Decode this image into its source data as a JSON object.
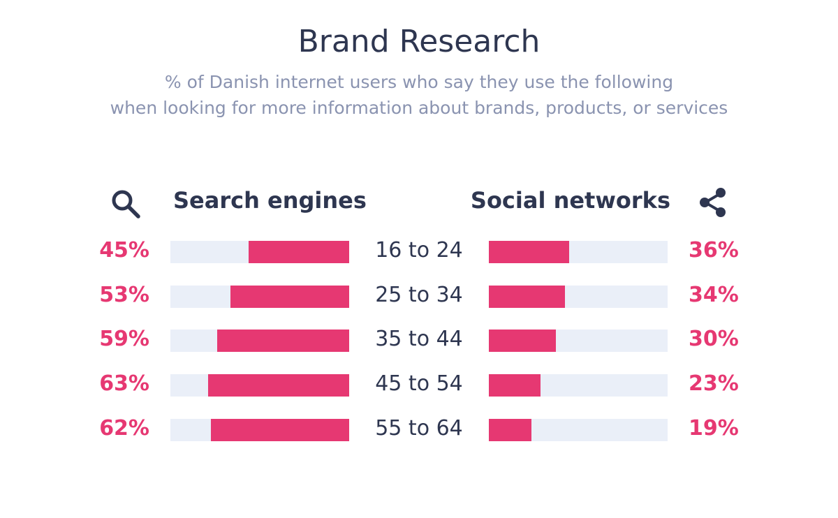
{
  "title": "Brand Research",
  "subtitle_line1": "% of Danish internet users who say they use the following",
  "subtitle_line2": "when looking for more information about brands, products, or services",
  "colors": {
    "accent": "#e63872",
    "track": "#eaeff8",
    "text_dark": "#2e3650",
    "text_muted": "#8a93b0"
  },
  "icons": {
    "left": "search-icon",
    "right": "share-icon"
  },
  "chart_data": {
    "type": "bar",
    "categories": [
      "16 to 24",
      "25 to 34",
      "35 to 44",
      "45 to 54",
      "55 to 64"
    ],
    "series": [
      {
        "name": "Search engines",
        "values": [
          45,
          53,
          59,
          63,
          62
        ],
        "labels": [
          "45%",
          "53%",
          "59%",
          "63%",
          "62%"
        ]
      },
      {
        "name": "Social networks",
        "values": [
          36,
          34,
          30,
          23,
          19
        ],
        "labels": [
          "36%",
          "34%",
          "30%",
          "23%",
          "19%"
        ]
      }
    ],
    "title": "Brand Research",
    "xlabel": "",
    "ylabel": "",
    "ylim": [
      0,
      80
    ],
    "grid": false,
    "orientation": "horizontal-butterfly"
  }
}
